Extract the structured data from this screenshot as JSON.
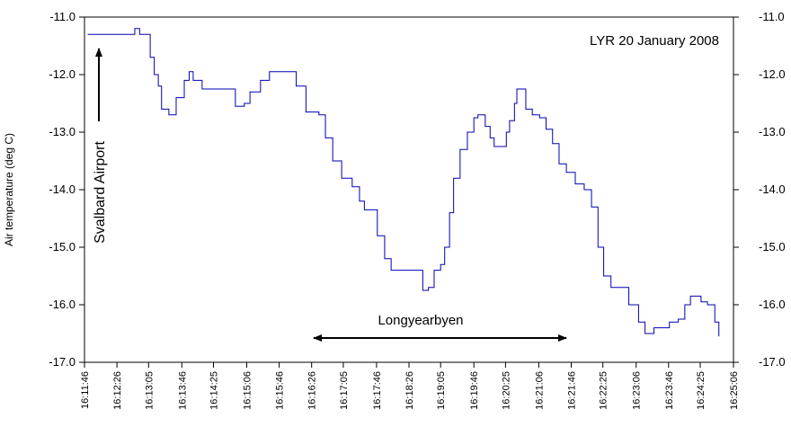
{
  "chart_data": {
    "type": "line",
    "step": true,
    "title": "LYR 20 January 2008",
    "ylabel": "Air temperature (deg C)",
    "annotations": [
      "Svalbard Airport",
      "Longyearbyen"
    ],
    "xlim": [
      "16:11:46",
      "16:25:06"
    ],
    "xticks": [
      "16:11:46",
      "16:12:26",
      "16:13:05",
      "16:13:46",
      "16:14:25",
      "16:15:06",
      "16:15:46",
      "16:16:26",
      "16:17:05",
      "16:17:46",
      "16:18:26",
      "16:19:05",
      "16:19:46",
      "16:20:25",
      "16:21:06",
      "16:21:46",
      "16:22:25",
      "16:23:06",
      "16:23:46",
      "16:24:25",
      "16:25:06"
    ],
    "ylim": [
      -17,
      -11
    ],
    "yticks": [
      {
        "value": -11,
        "label": "-11.0"
      },
      {
        "value": -12,
        "label": "-12.0"
      },
      {
        "value": -13,
        "label": "-13.0"
      },
      {
        "value": -14,
        "label": "-14.0"
      },
      {
        "value": -15,
        "label": "-15.0"
      },
      {
        "value": -16,
        "label": "-16.0"
      },
      {
        "value": -17,
        "label": "-17.0"
      }
    ],
    "right_axis": true,
    "color": "#0000b0",
    "x": [
      "16:11:50",
      "16:12:42",
      "16:12:48",
      "16:12:54",
      "16:13:02",
      "16:13:07",
      "16:13:12",
      "16:13:17",
      "16:13:21",
      "16:13:30",
      "16:13:39",
      "16:13:49",
      "16:13:55",
      "16:14:00",
      "16:14:11",
      "16:14:48",
      "16:14:52",
      "16:15:03",
      "16:15:10",
      "16:15:23",
      "16:15:34",
      "16:15:56",
      "16:16:07",
      "16:16:19",
      "16:16:35",
      "16:16:43",
      "16:16:52",
      "16:17:03",
      "16:17:16",
      "16:17:25",
      "16:17:31",
      "16:17:42",
      "16:17:47",
      "16:17:56",
      "16:18:04",
      "16:18:37",
      "16:18:43",
      "16:18:50",
      "16:18:57",
      "16:19:05",
      "16:19:10",
      "16:19:16",
      "16:19:21",
      "16:19:29",
      "16:19:38",
      "16:19:46",
      "16:19:51",
      "16:20:00",
      "16:20:06",
      "16:20:11",
      "16:20:19",
      "16:20:26",
      "16:20:30",
      "16:20:36",
      "16:20:39",
      "16:20:44",
      "16:20:50",
      "16:20:58",
      "16:21:07",
      "16:21:15",
      "16:21:23",
      "16:21:31",
      "16:21:40",
      "16:21:51",
      "16:22:02",
      "16:22:11",
      "16:22:19",
      "16:22:26",
      "16:22:35",
      "16:22:46",
      "16:22:57",
      "16:23:09",
      "16:23:17",
      "16:23:25",
      "16:23:28",
      "16:23:42",
      "16:23:47",
      "16:23:58",
      "16:24:06",
      "16:24:13",
      "16:24:21",
      "16:24:26",
      "16:24:34",
      "16:24:43",
      "16:24:48"
    ],
    "values": [
      -11.3,
      -11.3,
      -11.2,
      -11.3,
      -11.3,
      -11.7,
      -12.0,
      -12.2,
      -12.6,
      -12.7,
      -12.4,
      -12.1,
      -11.95,
      -12.1,
      -12.25,
      -12.25,
      -12.55,
      -12.5,
      -12.3,
      -12.1,
      -11.95,
      -11.95,
      -12.2,
      -12.65,
      -12.7,
      -13.1,
      -13.5,
      -13.8,
      -13.95,
      -14.2,
      -14.35,
      -14.35,
      -14.8,
      -15.2,
      -15.4,
      -15.4,
      -15.75,
      -15.7,
      -15.4,
      -15.3,
      -15.0,
      -14.4,
      -13.8,
      -13.3,
      -13.0,
      -12.75,
      -12.7,
      -12.9,
      -13.1,
      -13.25,
      -13.25,
      -13.0,
      -12.8,
      -12.5,
      -12.25,
      -12.25,
      -12.6,
      -12.7,
      -12.75,
      -12.95,
      -13.2,
      -13.55,
      -13.7,
      -13.9,
      -14.0,
      -14.3,
      -15.0,
      -15.5,
      -15.7,
      -15.7,
      -16.0,
      -16.3,
      -16.5,
      -16.5,
      -16.4,
      -16.4,
      -16.3,
      -16.25,
      -16.0,
      -15.85,
      -15.85,
      -15.95,
      -16.0,
      -16.3,
      -16.55
    ]
  }
}
